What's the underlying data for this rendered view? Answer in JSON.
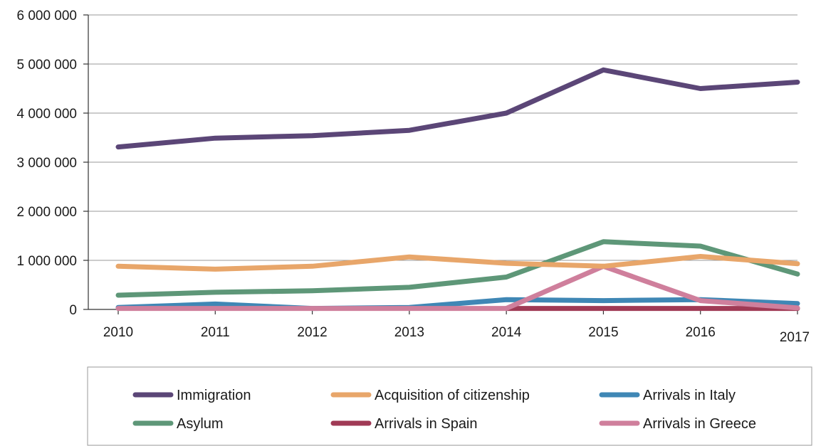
{
  "chart_data": {
    "type": "line",
    "x": [
      "2010",
      "2011",
      "2012",
      "2013",
      "2014",
      "2015",
      "2016",
      "2017"
    ],
    "ylim": [
      0,
      6000000
    ],
    "y_ticks": [
      0,
      1000000,
      2000000,
      3000000,
      4000000,
      5000000,
      6000000
    ],
    "y_tick_labels": [
      "0",
      "1 000 000",
      "2 000 000",
      "3 000 000",
      "4 000 000",
      "5 000 000",
      "6 000 000"
    ],
    "grid": "horizontal",
    "legend_position": "bottom",
    "series": [
      {
        "name": "Immigration",
        "color": "#5b4677",
        "values": [
          3310000,
          3490000,
          3540000,
          3650000,
          4000000,
          4880000,
          4500000,
          4630000
        ]
      },
      {
        "name": "Acquisition of citizenship",
        "color": "#e8a66a",
        "values": [
          880000,
          820000,
          880000,
          1070000,
          940000,
          880000,
          1080000,
          930000
        ]
      },
      {
        "name": "Arrivals in Italy",
        "color": "#3f87b5",
        "values": [
          40000,
          110000,
          20000,
          40000,
          200000,
          180000,
          200000,
          120000
        ]
      },
      {
        "name": "Asylum",
        "color": "#5e9778",
        "values": [
          290000,
          350000,
          380000,
          450000,
          660000,
          1380000,
          1290000,
          720000
        ]
      },
      {
        "name": "Arrivals in Spain",
        "color": "#a03a55",
        "values": [
          null,
          null,
          null,
          null,
          20000,
          20000,
          20000,
          20000
        ]
      },
      {
        "name": "Arrivals in Greece",
        "color": "#cf7f9c",
        "values": [
          20000,
          20000,
          20000,
          20000,
          20000,
          880000,
          180000,
          30000
        ]
      }
    ]
  }
}
